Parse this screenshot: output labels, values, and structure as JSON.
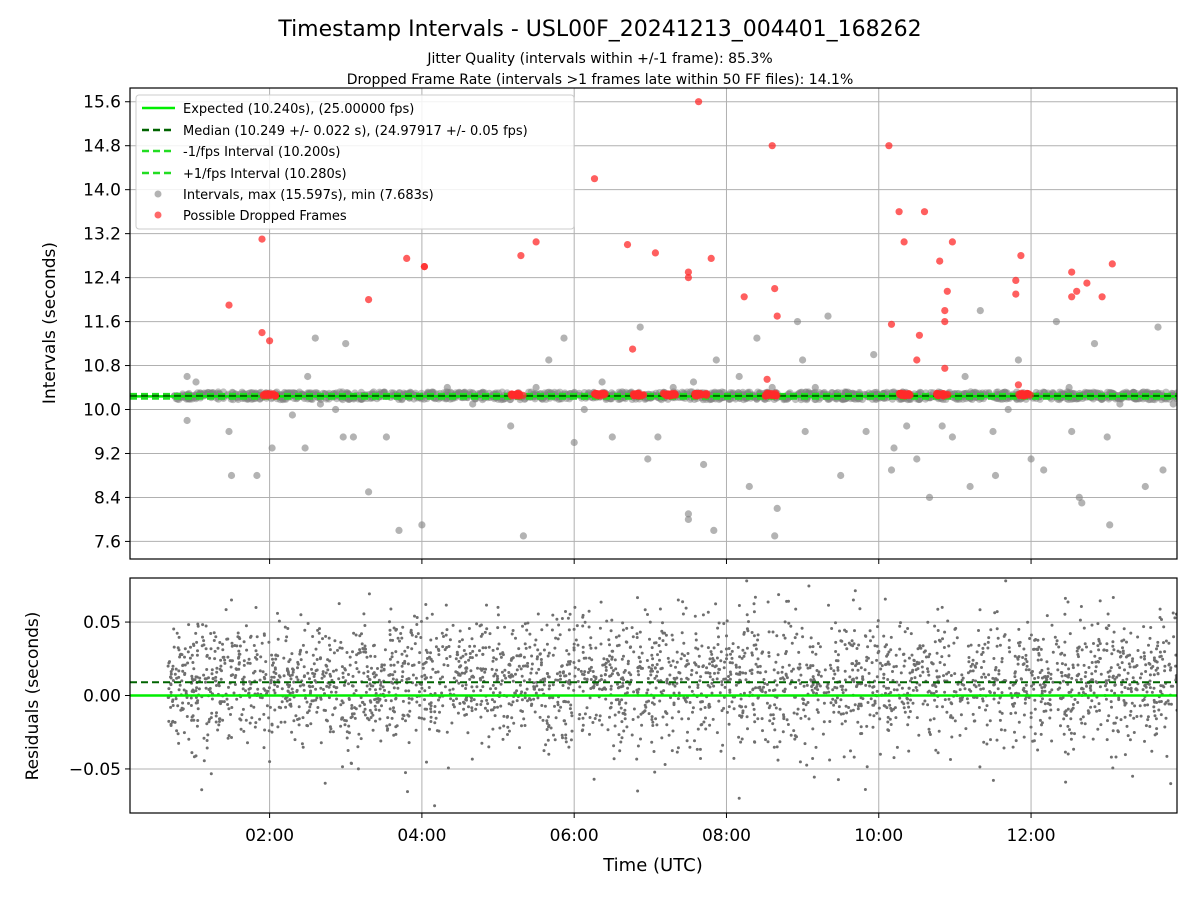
{
  "figure": {
    "title": "Timestamp Intervals - USL00F_20241213_004401_168262",
    "subtitle_line1": "Jitter Quality (intervals within +/-1 frame): 85.3%",
    "subtitle_line2": "Dropped Frame Rate (intervals >1 frames late within 50 FF files): 14.1%"
  },
  "colors": {
    "expected": "#00ee00",
    "median": "#006400",
    "interval_bounds": "#22dd22",
    "intervals": "#808080",
    "dropped": "#ff2a2a",
    "residuals": "#6f6f6f",
    "grid": "#b0b0b0"
  },
  "chart_data": [
    {
      "type": "scatter",
      "ylabel": "Intervals (seconds)",
      "xlim": [
        "00:10",
        "13:55"
      ],
      "ylim": [
        7.28,
        15.85
      ],
      "yticks": [
        "7.6",
        "8.4",
        "9.2",
        "10.0",
        "10.8",
        "11.6",
        "12.4",
        "13.2",
        "14.0",
        "14.8",
        "15.6"
      ],
      "grid": true,
      "legend_position": "upper-left",
      "reference_lines": {
        "expected": 10.24,
        "median": 10.249,
        "minus_1_fps": 10.2,
        "plus_1_fps": 10.28
      },
      "legend": [
        "Expected (10.240s), (25.00000 fps)",
        "Median (10.249 +/- 0.022 s), (24.97917 +/- 0.05 fps)",
        "-1/fps Interval (10.200s)",
        "+1/fps Interval (10.280s)",
        "Intervals, max (15.597s), min (7.683s)",
        "Possible Dropped Frames"
      ],
      "series": [
        {
          "name": "Intervals, max (15.597s), min (7.683s)",
          "x_range": [
            "00:45",
            "13:55"
          ],
          "dense_band": [
            10.18,
            10.32
          ],
          "outliers_x": [
            "00:55",
            "00:55",
            "01:02",
            "01:28",
            "01:30",
            "01:50",
            "02:02",
            "02:18",
            "02:28",
            "02:30",
            "02:36",
            "02:40",
            "02:52",
            "02:58",
            "03:00",
            "03:06",
            "03:18",
            "03:30",
            "03:32",
            "03:42",
            "04:00",
            "04:20",
            "04:40",
            "05:10",
            "05:20",
            "05:30",
            "05:40",
            "05:52",
            "06:00",
            "06:08",
            "06:22",
            "06:30",
            "06:52",
            "06:58",
            "07:06",
            "07:18",
            "07:30",
            "07:30",
            "07:34",
            "07:42",
            "07:50",
            "07:52",
            "08:10",
            "08:18",
            "08:24",
            "08:36",
            "08:38",
            "08:40",
            "08:56",
            "09:00",
            "09:02",
            "09:10",
            "09:20",
            "09:30",
            "09:40",
            "09:50",
            "09:56",
            "10:10",
            "10:12",
            "10:22",
            "10:30",
            "10:40",
            "10:50",
            "10:58",
            "11:08",
            "11:12",
            "11:20",
            "11:30",
            "11:32",
            "11:42",
            "11:50",
            "12:00",
            "12:10",
            "12:20",
            "12:30",
            "12:32",
            "12:38",
            "12:40",
            "12:50",
            "13:00",
            "13:02",
            "13:10",
            "13:30",
            "13:40",
            "13:44",
            "13:52"
          ],
          "outliers_y": [
            9.8,
            10.6,
            10.5,
            9.6,
            8.8,
            8.8,
            9.3,
            9.9,
            9.3,
            10.6,
            11.3,
            10.1,
            10.0,
            9.5,
            11.2,
            9.5,
            8.5,
            10.3,
            9.5,
            7.8,
            7.9,
            10.4,
            10.1,
            9.7,
            7.7,
            10.4,
            10.9,
            11.3,
            9.4,
            10.0,
            10.5,
            9.5,
            11.5,
            9.1,
            9.5,
            10.4,
            8.1,
            8.0,
            10.5,
            9.0,
            7.8,
            10.9,
            10.6,
            8.6,
            11.3,
            10.4,
            7.7,
            8.2,
            11.6,
            10.9,
            9.6,
            10.4,
            11.7,
            8.8,
            10.2,
            9.6,
            11.0,
            8.9,
            9.3,
            9.7,
            9.1,
            8.4,
            9.7,
            9.5,
            10.6,
            8.6,
            11.8,
            9.6,
            8.8,
            10.0,
            10.9,
            9.1,
            8.9,
            11.6,
            10.4,
            9.6,
            8.4,
            8.3,
            11.2,
            9.5,
            7.9,
            10.1,
            8.6,
            11.5,
            8.9,
            10.1
          ],
          "points_x": [
            "00:45",
            "00:50",
            "00:55",
            "01:02",
            "01:15",
            "01:30",
            "01:45",
            "02:10",
            "02:30",
            "02:45",
            "03:00",
            "03:20",
            "03:40",
            "04:00",
            "04:20",
            "04:45",
            "05:00",
            "05:40",
            "06:00",
            "06:20",
            "06:45",
            "07:00",
            "07:20",
            "07:45",
            "08:00",
            "08:20",
            "08:50",
            "09:10",
            "09:30",
            "09:50",
            "10:00",
            "10:15",
            "11:10",
            "11:30",
            "11:45",
            "12:00",
            "12:15",
            "12:30",
            "12:45",
            "13:00",
            "13:15",
            "13:30",
            "13:45",
            "13:55"
          ],
          "points_y": [
            10.25,
            10.22,
            10.27,
            10.24,
            10.26,
            10.23,
            10.25,
            10.24,
            10.27,
            10.22,
            10.25,
            10.26,
            10.23,
            10.25,
            10.24,
            10.27,
            10.22,
            10.25,
            10.26,
            10.23,
            10.25,
            10.24,
            10.27,
            10.22,
            10.25,
            10.26,
            10.23,
            10.25,
            10.24,
            10.27,
            10.22,
            10.25,
            10.26,
            10.23,
            10.25,
            10.24,
            10.27,
            10.22,
            10.25,
            10.26,
            10.23,
            10.25,
            10.24,
            10.3
          ]
        },
        {
          "name": "Possible Dropped Frames",
          "x": [
            "01:28",
            "01:54",
            "01:54",
            "02:00",
            "03:18",
            "03:48",
            "04:02",
            "04:02",
            "05:18",
            "05:30",
            "06:16",
            "06:42",
            "06:46",
            "07:04",
            "07:30",
            "07:30",
            "07:38",
            "07:48",
            "08:14",
            "08:32",
            "08:36",
            "08:38",
            "08:40",
            "10:08",
            "10:10",
            "10:16",
            "10:20",
            "10:30",
            "10:32",
            "10:36",
            "10:48",
            "10:52",
            "10:52",
            "10:52",
            "10:54",
            "10:58",
            "11:48",
            "11:48",
            "11:50",
            "11:52",
            "12:32",
            "12:32",
            "12:36",
            "12:44",
            "12:56",
            "13:04"
          ],
          "y": [
            11.9,
            13.1,
            11.4,
            11.25,
            12.0,
            12.75,
            12.6,
            12.6,
            12.8,
            13.05,
            14.2,
            13.0,
            11.1,
            12.85,
            12.5,
            12.4,
            15.6,
            12.75,
            12.05,
            10.55,
            14.8,
            12.2,
            11.7,
            14.8,
            11.55,
            13.6,
            13.05,
            10.9,
            11.35,
            13.6,
            12.7,
            11.8,
            11.6,
            10.75,
            12.15,
            13.05,
            12.1,
            12.35,
            10.45,
            12.8,
            12.05,
            12.5,
            12.15,
            12.3,
            12.05,
            12.65
          ],
          "dense_clusters_x": [
            "02:00",
            "05:15",
            "06:20",
            "06:50",
            "07:15",
            "07:40",
            "08:35",
            "10:20",
            "10:50",
            "11:55"
          ],
          "dense_clusters_y": [
            10.27,
            10.27,
            10.27,
            10.27,
            10.27,
            10.27,
            10.27,
            10.27,
            10.27,
            10.27
          ]
        }
      ]
    },
    {
      "type": "scatter",
      "xlabel": "Time (UTC)",
      "ylabel": "Residuals (seconds)",
      "xlim": [
        "00:10",
        "13:55"
      ],
      "ylim": [
        -0.08,
        0.08
      ],
      "xticks": [
        "02:00",
        "04:00",
        "06:00",
        "08:00",
        "10:00",
        "12:00"
      ],
      "yticks": [
        "−0.05",
        "0.00",
        "0.05"
      ],
      "grid": true,
      "reference_lines": {
        "zero": 0.0,
        "median_offset": 0.009
      },
      "series": [
        {
          "name": "Residuals",
          "x_range": [
            "00:40",
            "13:55"
          ],
          "mean": 0.009,
          "sd": 0.022,
          "range": [
            -0.08,
            0.08
          ],
          "points_x": [
            "00:40",
            "00:50",
            "01:00",
            "01:10",
            "01:20",
            "01:35",
            "01:50",
            "02:05",
            "02:20",
            "02:40",
            "03:00",
            "03:20",
            "03:40",
            "04:00",
            "04:20",
            "04:40",
            "05:00",
            "05:20",
            "05:40",
            "06:00",
            "06:20",
            "06:40",
            "07:00",
            "07:20",
            "07:40",
            "08:00",
            "08:20",
            "08:40",
            "09:00",
            "09:20",
            "09:40",
            "10:00",
            "10:20",
            "10:40",
            "11:00",
            "11:20",
            "11:40",
            "12:00",
            "12:20",
            "12:40",
            "13:00",
            "13:20",
            "13:40",
            "13:55"
          ],
          "points_y": [
            0.02,
            -0.01,
            0.035,
            0.005,
            -0.02,
            0.04,
            0.0,
            0.015,
            -0.03,
            0.025,
            0.01,
            -0.015,
            0.045,
            0.005,
            -0.025,
            0.03,
            0.0,
            0.02,
            -0.04,
            0.035,
            0.01,
            -0.01,
            0.05,
            0.0,
            -0.02,
            0.025,
            0.015,
            -0.035,
            0.04,
            0.005,
            -0.01,
            0.03,
            0.02,
            -0.025,
            0.045,
            0.0,
            0.01,
            -0.015,
            0.035,
            0.005,
            -0.03,
            0.025,
            0.015,
            -0.01
          ],
          "outliers_x": [
            "01:30",
            "02:00",
            "03:10",
            "04:10",
            "05:00",
            "06:50",
            "08:10",
            "09:40",
            "10:50",
            "11:40",
            "13:20",
            "13:50"
          ],
          "outliers_y": [
            0.065,
            -0.045,
            -0.05,
            -0.075,
            0.06,
            -0.065,
            -0.07,
            0.065,
            0.06,
            0.078,
            -0.055,
            -0.06
          ]
        }
      ]
    }
  ]
}
